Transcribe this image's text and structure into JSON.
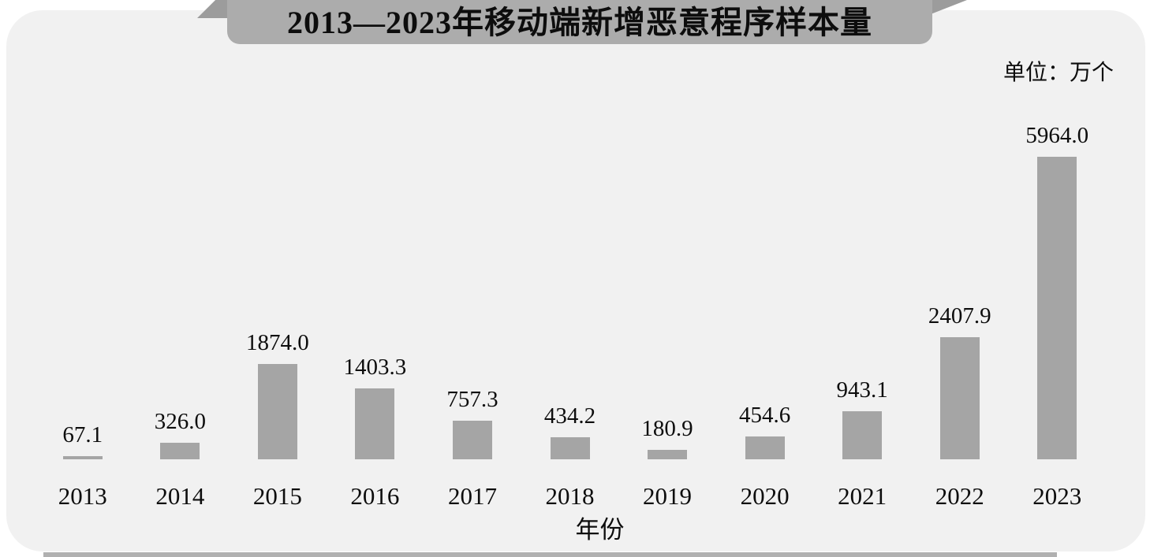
{
  "header": {
    "title": "2013—2023年移动端新增恶意程序样本量",
    "unit_label": "单位：万个"
  },
  "chart_data": {
    "type": "bar",
    "title": "2013—2023年移动端新增恶意程序样本量",
    "unit": "万个",
    "categories": [
      "2013",
      "2014",
      "2015",
      "2016",
      "2017",
      "2018",
      "2019",
      "2020",
      "2021",
      "2022",
      "2023"
    ],
    "values": [
      67.1,
      326.0,
      1874.0,
      1403.3,
      757.3,
      434.2,
      180.9,
      454.6,
      943.1,
      2407.9,
      5964.0
    ],
    "value_labels": [
      "67.1",
      "326.0",
      "1874.0",
      "1403.3",
      "757.3",
      "434.2",
      "180.9",
      "454.6",
      "943.1",
      "2407.9",
      "5964.0"
    ],
    "xlabel": "年份",
    "ylabel": "",
    "ylim": [
      0,
      6000
    ],
    "grid": false,
    "legend": "none",
    "data_label_position": "above",
    "bar_color": "#a5a5a5"
  },
  "colors": {
    "page_bg": "#ffffff",
    "panel_bg": "#f1f1f1",
    "banner_bg": "#acacac",
    "banner_fold": "#9c9c9c",
    "bar": "#a5a5a5",
    "bottom_strip": "#b0b0b0",
    "text": "#0d0d0d"
  }
}
